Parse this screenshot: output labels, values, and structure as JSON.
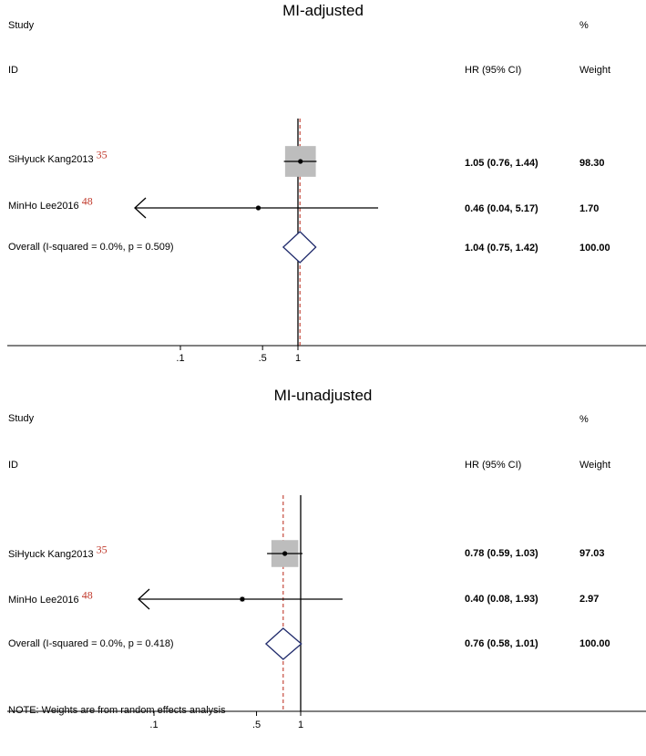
{
  "chart_data": [
    {
      "type": "forest",
      "title": "MI-adjusted",
      "header": {
        "study": "Study",
        "id": "ID",
        "pct": "%",
        "estimate": "HR (95% CI)",
        "weight": "Weight"
      },
      "x_scale": "log",
      "x_ticks": [
        0.1,
        0.5,
        1
      ],
      "x_tick_labels": [
        ".1",
        ".5",
        "1"
      ],
      "null_line": 1,
      "overall_line": 1.04,
      "rows": [
        {
          "label": "SiHyuck Kang2013",
          "ref": "35",
          "hr": 1.05,
          "lo": 0.76,
          "hi": 1.44,
          "est_text": "1.05 (0.76, 1.44)",
          "weight": 98.3,
          "weight_text": "98.30",
          "arrow_left": false
        },
        {
          "label": "MinHo Lee2016",
          "ref": "48",
          "hr": 0.46,
          "lo": 0.04,
          "hi": 5.17,
          "est_text": "0.46 (0.04, 5.17)",
          "weight": 1.7,
          "weight_text": "1.70",
          "arrow_left": true
        }
      ],
      "overall": {
        "label": "Overall  (I-squared = 0.0%, p = 0.509)",
        "hr": 1.04,
        "lo": 0.75,
        "hi": 1.42,
        "est_text": "1.04 (0.75, 1.42)",
        "weight_text": "100.00"
      },
      "note": ""
    },
    {
      "type": "forest",
      "title": "MI-unadjusted",
      "header": {
        "study": "Study",
        "id": "ID",
        "pct": "%",
        "estimate": "HR (95% CI)",
        "weight": "Weight"
      },
      "x_scale": "log",
      "x_ticks": [
        0.1,
        0.5,
        1
      ],
      "x_tick_labels": [
        ".1",
        ".5",
        "1"
      ],
      "null_line": 1,
      "overall_line": 0.76,
      "rows": [
        {
          "label": "SiHyuck Kang2013",
          "ref": "35",
          "hr": 0.78,
          "lo": 0.59,
          "hi": 1.03,
          "est_text": "0.78 (0.59, 1.03)",
          "weight": 97.03,
          "weight_text": "97.03",
          "arrow_left": false
        },
        {
          "label": "MinHo Lee2016",
          "ref": "48",
          "hr": 0.4,
          "lo": 0.08,
          "hi": 1.93,
          "est_text": "0.40 (0.08, 1.93)",
          "weight": 2.97,
          "weight_text": "2.97",
          "arrow_left": true
        }
      ],
      "overall": {
        "label": "Overall  (I-squared = 0.0%, p = 0.418)",
        "hr": 0.76,
        "lo": 0.58,
        "hi": 1.01,
        "est_text": "0.76 (0.58, 1.01)",
        "weight_text": "100.00"
      },
      "note": "NOTE: Weights are from random effects analysis"
    }
  ],
  "colors": {
    "axis": "#000000",
    "box": "#bdbdbd",
    "diamond": "#1f2a6b",
    "overall_line": "#c0392b",
    "ref_text": "#c0392b"
  }
}
